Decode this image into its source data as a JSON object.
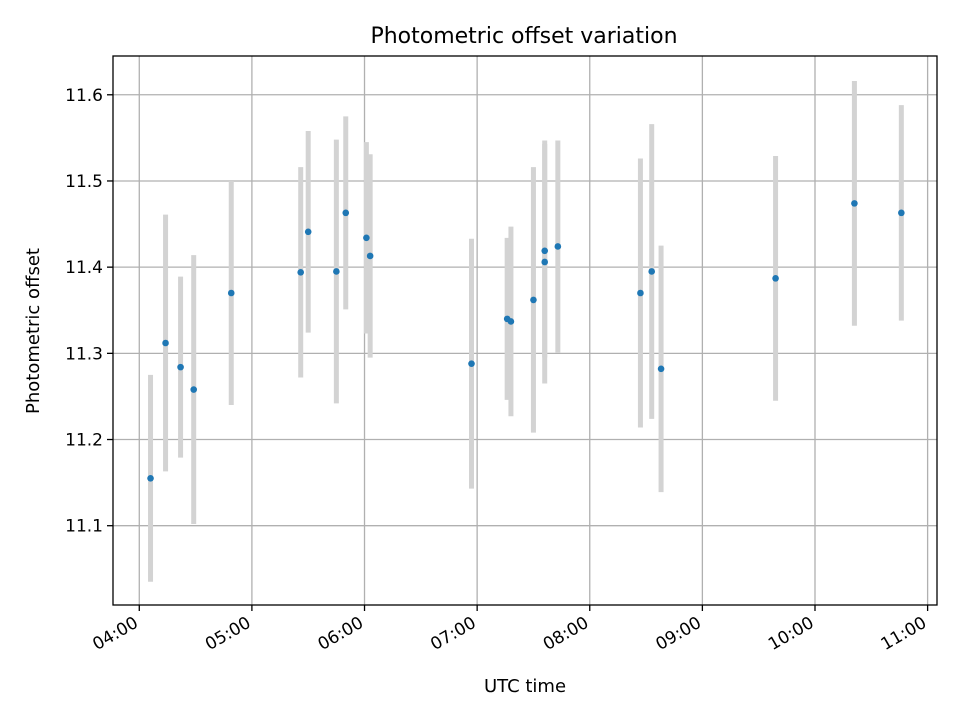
{
  "chart_data": {
    "type": "scatter",
    "title": "Photometric offset variation",
    "xlabel": "UTC time",
    "ylabel": "Photometric offset",
    "x_ticks": [
      "04:00",
      "05:00",
      "06:00",
      "07:00",
      "08:00",
      "09:00",
      "10:00",
      "11:00"
    ],
    "y_ticks": [
      "11.1",
      "11.2",
      "11.3",
      "11.4",
      "11.5",
      "11.6"
    ],
    "xlim": [
      "03:46",
      "11:05"
    ],
    "ylim": [
      11.008,
      11.645
    ],
    "grid": true,
    "marker_color": "#1f77b4",
    "errorbar_color": "#d3d3d3",
    "points": [
      {
        "x": "04:06",
        "y": 11.155,
        "err": 0.12
      },
      {
        "x": "04:14",
        "y": 11.312,
        "err": 0.149
      },
      {
        "x": "04:22",
        "y": 11.284,
        "err": 0.105
      },
      {
        "x": "04:29",
        "y": 11.258,
        "err": 0.156
      },
      {
        "x": "04:49",
        "y": 11.37,
        "err": 0.13
      },
      {
        "x": "05:26",
        "y": 11.394,
        "err": 0.122
      },
      {
        "x": "05:30",
        "y": 11.441,
        "err": 0.117
      },
      {
        "x": "05:45",
        "y": 11.395,
        "err": 0.153
      },
      {
        "x": "05:50",
        "y": 11.463,
        "err": 0.112
      },
      {
        "x": "06:01",
        "y": 11.434,
        "err": 0.111
      },
      {
        "x": "06:03",
        "y": 11.413,
        "err": 0.118
      },
      {
        "x": "06:57",
        "y": 11.288,
        "err": 0.145
      },
      {
        "x": "07:16",
        "y": 11.34,
        "err": 0.094
      },
      {
        "x": "07:18",
        "y": 11.337,
        "err": 0.11
      },
      {
        "x": "07:30",
        "y": 11.362,
        "err": 0.154
      },
      {
        "x": "07:36",
        "y": 11.419,
        "err": 0.124
      },
      {
        "x": "07:36",
        "y": 11.406,
        "err": 0.141
      },
      {
        "x": "07:43",
        "y": 11.424,
        "err": 0.123
      },
      {
        "x": "08:27",
        "y": 11.37,
        "err": 0.156
      },
      {
        "x": "08:33",
        "y": 11.395,
        "err": 0.171
      },
      {
        "x": "08:38",
        "y": 11.282,
        "err": 0.143
      },
      {
        "x": "09:39",
        "y": 11.387,
        "err": 0.142
      },
      {
        "x": "10:21",
        "y": 11.474,
        "err": 0.142
      },
      {
        "x": "10:46",
        "y": 11.463,
        "err": 0.125
      }
    ]
  }
}
